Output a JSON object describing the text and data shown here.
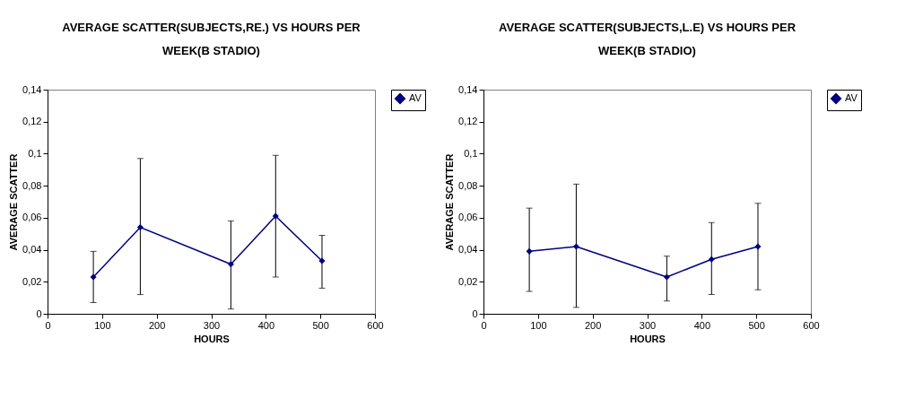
{
  "chart_data": [
    {
      "type": "line",
      "title": "AVERAGE SCATTER(SUBJECTS,RE.) VS HOURS PER WEEK(B STADIO)",
      "xlabel": "HOURS",
      "ylabel": "AVERAGE SCATTER",
      "x": [
        84,
        170,
        336,
        418,
        503
      ],
      "series": [
        {
          "name": "AV",
          "color": "#000080",
          "values": [
            0.023,
            0.054,
            0.031,
            0.061,
            0.033
          ],
          "errors": [
            [
              0.007,
              0.039
            ],
            [
              0.012,
              0.097
            ],
            [
              0.003,
              0.058
            ],
            [
              0.023,
              0.099
            ],
            [
              0.016,
              0.049
            ]
          ]
        }
      ],
      "xlim": [
        0,
        600
      ],
      "xticks": [
        0,
        100,
        200,
        300,
        400,
        500,
        600
      ],
      "ylim": [
        0,
        0.14
      ],
      "yticks": [
        {
          "value": 0,
          "label": "0"
        },
        {
          "value": 0.02,
          "label": "0,02"
        },
        {
          "value": 0.04,
          "label": "0,04"
        },
        {
          "value": 0.06,
          "label": "0,06"
        },
        {
          "value": 0.08,
          "label": "0,08"
        },
        {
          "value": 0.1,
          "label": "0,1"
        },
        {
          "value": 0.12,
          "label": "0,12"
        },
        {
          "value": 0.14,
          "label": "0,14"
        }
      ],
      "grid": false,
      "legend": "right",
      "marker": "diamond",
      "line_style": "solid"
    },
    {
      "type": "line",
      "title": "AVERAGE SCATTER(SUBJECTS,L.E) VS HOURS PER WEEK(B STADIO)",
      "xlabel": "HOURS",
      "ylabel": "AVERAGE SCATTER",
      "x": [
        84,
        170,
        336,
        418,
        503
      ],
      "series": [
        {
          "name": "AV",
          "color": "#000080",
          "values": [
            0.039,
            0.042,
            0.023,
            0.034,
            0.042
          ],
          "errors": [
            [
              0.014,
              0.066
            ],
            [
              0.004,
              0.081
            ],
            [
              0.008,
              0.036
            ],
            [
              0.012,
              0.057
            ],
            [
              0.015,
              0.069
            ]
          ]
        }
      ],
      "xlim": [
        0,
        600
      ],
      "xticks": [
        0,
        100,
        200,
        300,
        400,
        500,
        600
      ],
      "ylim": [
        0,
        0.14
      ],
      "yticks": [
        {
          "value": 0,
          "label": "0"
        },
        {
          "value": 0.02,
          "label": "0,02"
        },
        {
          "value": 0.04,
          "label": "0,04"
        },
        {
          "value": 0.06,
          "label": "0,06"
        },
        {
          "value": 0.08,
          "label": "0,08"
        },
        {
          "value": 0.1,
          "label": "0,1"
        },
        {
          "value": 0.12,
          "label": "0,12"
        },
        {
          "value": 0.14,
          "label": "0,14"
        }
      ],
      "grid": false,
      "legend": "right",
      "marker": "diamond",
      "line_style": "solid"
    }
  ]
}
